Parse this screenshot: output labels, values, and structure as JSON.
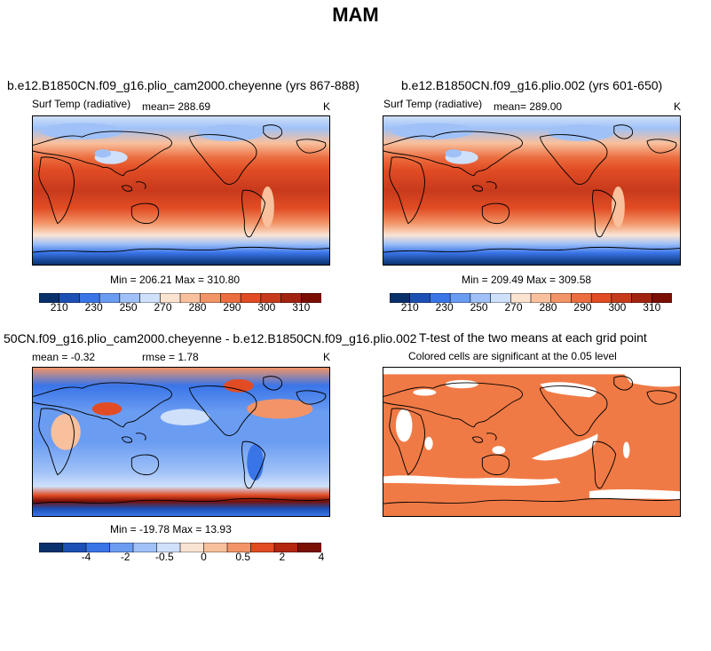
{
  "title": "MAM",
  "panels": [
    {
      "id": "p1",
      "title": "b.e12.B1850CN.f09_g16.plio_cam2000.cheyenne (yrs 867-888)",
      "variable": "Surf Temp (radiative)",
      "mean_text": "mean= 288.69",
      "units": "K",
      "minmax_text": "Min = 206.21 Max = 310.80"
    },
    {
      "id": "p2",
      "title": "b.e12.B1850CN.f09_g16.plio.002 (yrs 601-650)",
      "variable": "Surf Temp (radiative)",
      "mean_text": "mean= 289.00",
      "units": "K",
      "minmax_text": "Min = 209.49 Max = 309.58"
    },
    {
      "id": "p3",
      "title": "50CN.f09_g16.plio_cam2000.cheyenne - b.e12.B1850CN.f09_g16.plio.002",
      "mean_text": "mean =   -0.32",
      "rmse_text": "rmse =    1.78",
      "units": "K",
      "minmax_text": "Min = -19.78 Max =  13.93"
    },
    {
      "id": "p4",
      "title": "T-test of the two means at each grid point",
      "subtitle": "Colored cells are significant at the 0.05 level"
    }
  ],
  "colorbar_abs": {
    "labels": [
      "210",
      "230",
      "250",
      "270",
      "280",
      "290",
      "300",
      "310"
    ],
    "colors": [
      "#08306b",
      "#1c50b4",
      "#3a75e8",
      "#6a9cf2",
      "#9fc1f7",
      "#cfe0fb",
      "#fbe3d2",
      "#f8c09c",
      "#f29467",
      "#ec6d3f",
      "#e14c24",
      "#c83a1c",
      "#a22410",
      "#7a0f05"
    ]
  },
  "colorbar_diff": {
    "labels": [
      "-4",
      "-2",
      "-0.5",
      "0",
      "0.5",
      "2",
      "4"
    ],
    "colors": [
      "#08306b",
      "#1c50b4",
      "#3a75e8",
      "#6a9cf2",
      "#9fc1f7",
      "#cfe0fb",
      "#fbe3d2",
      "#f8c09c",
      "#f29467",
      "#e14c24",
      "#b4260f",
      "#7a0f05"
    ]
  },
  "chart_data": [
    {
      "type": "heatmap",
      "title": "b.e12.B1850CN.f09_g16.plio_cam2000.cheyenne (yrs 867-888)",
      "variable": "Surf Temp (radiative)",
      "units": "K",
      "mean": 288.69,
      "min": 206.21,
      "max": 310.8,
      "colorbar_ticks": [
        210,
        230,
        250,
        270,
        280,
        290,
        300,
        310
      ]
    },
    {
      "type": "heatmap",
      "title": "b.e12.B1850CN.f09_g16.plio.002 (yrs 601-650)",
      "variable": "Surf Temp (radiative)",
      "units": "K",
      "mean": 289.0,
      "min": 209.49,
      "max": 309.58,
      "colorbar_ticks": [
        210,
        230,
        250,
        270,
        280,
        290,
        300,
        310
      ]
    },
    {
      "type": "heatmap",
      "title": "50CN.f09_g16.plio_cam2000.cheyenne - b.e12.B1850CN.f09_g16.plio.002",
      "units": "K",
      "mean": -0.32,
      "rmse": 1.78,
      "min": -19.78,
      "max": 13.93,
      "colorbar_ticks": [
        -4,
        -2,
        -0.5,
        0,
        0.5,
        2,
        4
      ]
    },
    {
      "type": "heatmap",
      "title": "T-test of the two means at each grid point",
      "subtitle": "Colored cells are significant at the 0.05 level",
      "significant_color": "#f07a45"
    }
  ]
}
